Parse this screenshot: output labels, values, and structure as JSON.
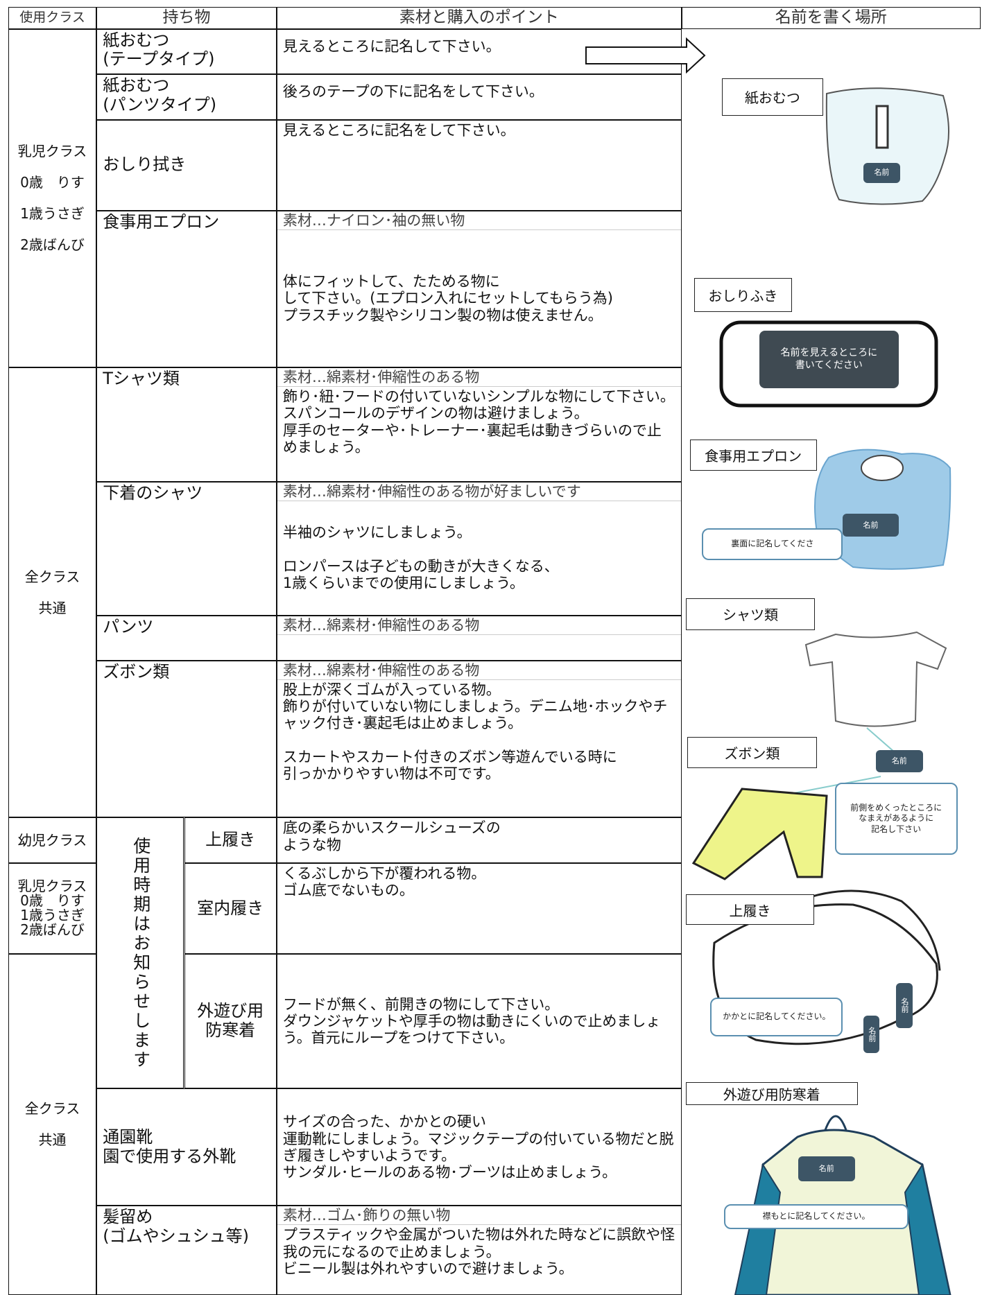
{
  "header": {
    "class": "使用クラス",
    "item": "持ち物",
    "point": "素材と購入のポイント",
    "name_place": "名前を書く場所"
  },
  "classes": [
    {
      "lines": [
        "乳児クラス",
        "0歳　りす",
        "1歳うさぎ",
        "2歳ばんび"
      ]
    },
    {
      "lines": [
        "全クラス",
        "共通"
      ]
    },
    {
      "lines": [
        "幼児クラス"
      ]
    },
    {
      "lines": [
        "乳児クラス",
        "0歳　りす",
        "1歳うさぎ",
        "2歳ばんび"
      ]
    },
    {
      "lines": [
        "全クラス",
        "共通"
      ]
    }
  ],
  "usage_note": "使用時期はお知らせします",
  "rows": [
    {
      "item": "紙おむつ\n(テープタイプ)",
      "point": "見えるところに記名して下さい。"
    },
    {
      "item": "紙おむつ\n(パンツタイプ)",
      "point": "後ろのテープの下に記名をして下さい。"
    },
    {
      "item": "おしり拭き",
      "point": "見えるところに記名をして下さい。"
    },
    {
      "item": "食事用エプロン",
      "material": "素材…ナイロン･袖の無い物",
      "point": "体にフィットして、たためる物に\nして下さい。(エプロン入れにセットしてもらう為)\nプラスチック製やシリコン製の物は使えません。"
    },
    {
      "item": "Tシャツ類",
      "material": "素材…綿素材･伸縮性のある物",
      "point": "飾り･紐･フードの付いていないシンプルな物にして下さい。\nスパンコールのデザインの物は避けましょう。\n厚手のセーターや･トレーナー･裏起毛は動きづらいので止めましょう。"
    },
    {
      "item": "下着のシャツ",
      "material": "素材…綿素材･伸縮性のある物が好ましいです",
      "point": "半袖のシャツにしましょう。\n\nロンパースは子どもの動きが大きくなる、\n1歳くらいまでの使用にしましょう。"
    },
    {
      "item": "パンツ",
      "material": "素材…綿素材･伸縮性のある物"
    },
    {
      "item": "ズボン類",
      "material": "素材…綿素材･伸縮性のある物",
      "point": "股上が深くゴムが入っている物。\n飾りが付いていない物にしましょう。デニム地･ホックやチャック付き･裏起毛は止めましょう。\n\nスカートやスカート付きのズボン等遊んでいる時に\n引っかかりやすい物は不可です。"
    },
    {
      "item": "上履き",
      "point": "底の柔らかいスクールシューズの\nような物"
    },
    {
      "item": "室内履き",
      "point": "くるぶしから下が覆われる物。\nゴム底でないもの。"
    },
    {
      "item": "外遊び用\n防寒着",
      "point": "フードが無く、前開きの物にして下さい。\nダウンジャケットや厚手の物は動きにくいので止めましょう。首元にループをつけて下さい。"
    },
    {
      "item": "通園靴\n園で使用する外靴",
      "point": "サイズの合った、かかとの硬い\n運動靴にしましょう。マジックテープの付いている物だと脱ぎ履きしやすいようです。\nサンダル･ヒールのある物･ブーツは止めましょう。"
    },
    {
      "item": "髪留め\n(ゴムやシュシュ等)",
      "material": "素材…ゴム･飾りの無い物",
      "point": "プラスティックや金属がついた物は外れた時などに誤飲や怪我の元になるので止めましょう。\nビニール製は外れやすいので避けましょう。"
    }
  ],
  "right_panel": {
    "labels": [
      "紙おむつ",
      "おしりふき",
      "食事用エプロン",
      "シャツ類",
      "ズボン類",
      "上履き",
      "外遊び用防寒着"
    ],
    "callouts": [
      "名前",
      "名前を見えるところに\n書いてください",
      "名前",
      "裏面に記名してくださ",
      "名前",
      "前側をめくったところに\nなまえがあるように\n記名し下さい",
      "かかとに記名してください。",
      "名前",
      "名前",
      "名前",
      "襟もとに記名してください。"
    ]
  }
}
